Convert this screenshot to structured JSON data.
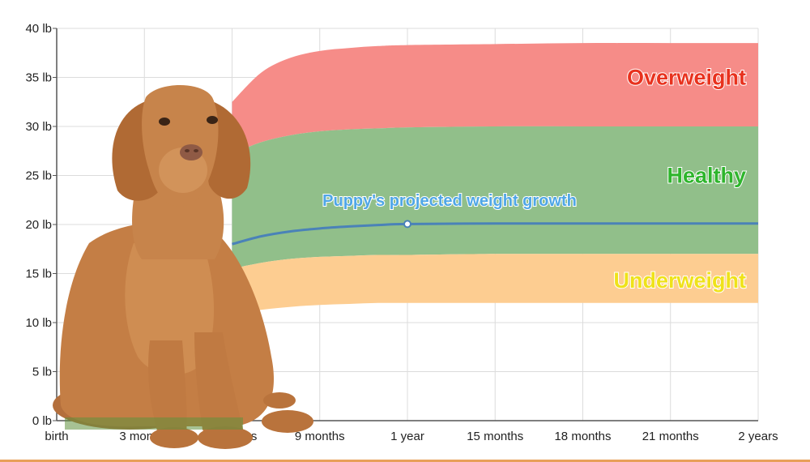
{
  "chart_data": {
    "type": "area",
    "title": "",
    "xlabel": "",
    "ylabel": "",
    "xlim": [
      0,
      24
    ],
    "ylim": [
      0,
      40
    ],
    "grid": true,
    "x_ticks": [
      {
        "value": 0,
        "label": "birth"
      },
      {
        "value": 3,
        "label": "3 months"
      },
      {
        "value": 6,
        "label": "6 months"
      },
      {
        "value": 9,
        "label": "9 months"
      },
      {
        "value": 12,
        "label": "1 year"
      },
      {
        "value": 15,
        "label": "15 months"
      },
      {
        "value": 18,
        "label": "18 months"
      },
      {
        "value": 21,
        "label": "21 months"
      },
      {
        "value": 24,
        "label": "2 years"
      }
    ],
    "y_ticks": [
      {
        "value": 0,
        "label": "0 lb"
      },
      {
        "value": 5,
        "label": "5 lb"
      },
      {
        "value": 10,
        "label": "10 lb"
      },
      {
        "value": 15,
        "label": "15 lb"
      },
      {
        "value": 20,
        "label": "20 lb"
      },
      {
        "value": 25,
        "label": "25 lb"
      },
      {
        "value": 30,
        "label": "30 lb"
      },
      {
        "value": 35,
        "label": "35 lb"
      },
      {
        "value": 40,
        "label": "40 lb"
      }
    ],
    "x": [
      6,
      7,
      8,
      9,
      10,
      11,
      12,
      15,
      18,
      21,
      24
    ],
    "bands": [
      {
        "name": "Overweight",
        "label": "Overweight",
        "color": "#f68c88",
        "label_color": "#e8321e",
        "lower": [
          27.2,
          28.4,
          29.1,
          29.5,
          29.7,
          29.8,
          29.9,
          30.0,
          30.0,
          30.0,
          30.0
        ],
        "upper": [
          32.5,
          35.5,
          37.0,
          37.7,
          38.0,
          38.2,
          38.3,
          38.4,
          38.5,
          38.5,
          38.5
        ]
      },
      {
        "name": "Healthy",
        "label": "Healthy",
        "color": "#91bf8a",
        "label_color": "#2fb52d",
        "lower": [
          15.5,
          16.1,
          16.5,
          16.7,
          16.8,
          16.9,
          16.9,
          17.0,
          17.0,
          17.0,
          17.0
        ],
        "upper": [
          27.2,
          28.4,
          29.1,
          29.5,
          29.7,
          29.8,
          29.9,
          30.0,
          30.0,
          30.0,
          30.0
        ]
      },
      {
        "name": "Underweight",
        "label": "Underweight",
        "color": "#fdcd91",
        "label_color": "#efe21a",
        "lower": [
          10.8,
          11.3,
          11.6,
          11.8,
          11.9,
          12.0,
          12.0,
          12.0,
          12.0,
          12.0,
          12.0
        ],
        "upper": [
          15.5,
          16.1,
          16.5,
          16.7,
          16.8,
          16.9,
          16.9,
          17.0,
          17.0,
          17.0,
          17.0
        ]
      }
    ],
    "series": [
      {
        "name": "Puppy's projected weight growth",
        "label": "Puppy's projected weight growth",
        "color": "#4a82b8",
        "values": [
          18.0,
          18.8,
          19.3,
          19.6,
          19.8,
          19.95,
          20.05,
          20.1,
          20.1,
          20.1,
          20.1
        ],
        "marker_x": 12,
        "marker_y": 20.05
      }
    ],
    "colors": {
      "grid": "#dcdcdc",
      "axis": "#555555",
      "label_blue": "#4fa6e6"
    }
  }
}
